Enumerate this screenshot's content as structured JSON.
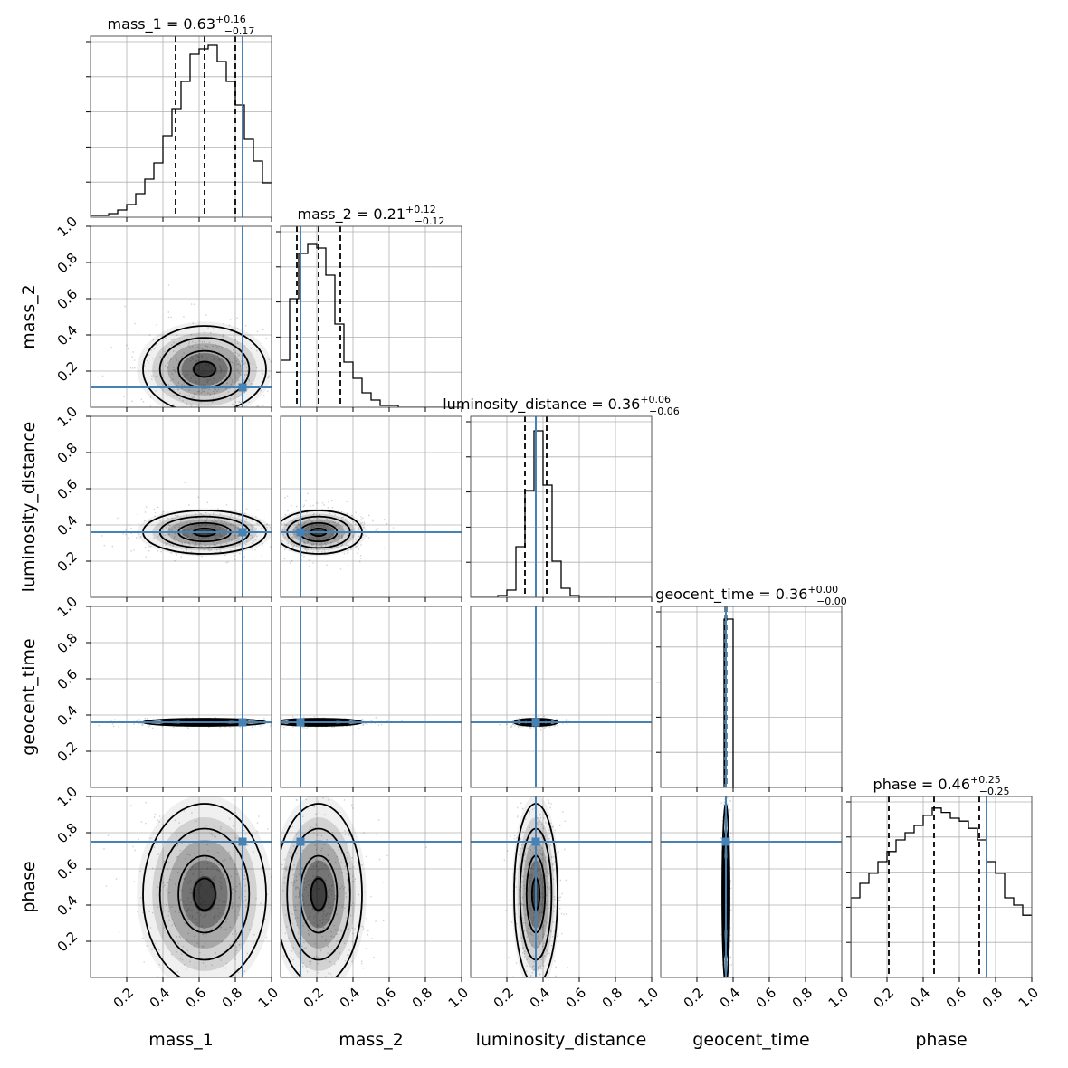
{
  "chart_data": {
    "type": "corner",
    "parameters": [
      "mass_1",
      "mass_2",
      "luminosity_distance",
      "geocent_time",
      "phase"
    ],
    "axis_range": [
      0,
      1
    ],
    "tick_labels": [
      "0.2",
      "0.4",
      "0.6",
      "0.8",
      "1.0"
    ],
    "ticks": [
      0.2,
      0.4,
      0.6,
      0.8,
      1.0
    ],
    "grid": true,
    "colors": {
      "truth": "#4682b4",
      "hist": "#000000",
      "quantile": "#000000"
    },
    "titles": [
      {
        "name": "mass_1",
        "median": "0.63",
        "plus": "+0.16",
        "minus": "−0.17"
      },
      {
        "name": "mass_2",
        "median": "0.21",
        "plus": "+0.12",
        "minus": "−0.12"
      },
      {
        "name": "luminosity_distance",
        "median": "0.36",
        "plus": "+0.06",
        "minus": "−0.06"
      },
      {
        "name": "geocent_time",
        "median": "0.36",
        "plus": "+0.00",
        "minus": "−0.00"
      },
      {
        "name": "phase",
        "median": "0.46",
        "plus": "+0.25",
        "minus": "−0.25"
      }
    ],
    "truths": [
      0.84,
      0.11,
      0.36,
      0.36,
      0.75
    ],
    "quantiles": [
      [
        0.47,
        0.63,
        0.8
      ],
      [
        0.09,
        0.21,
        0.33
      ],
      [
        0.3,
        0.36,
        0.42
      ],
      [
        0.357,
        0.36,
        0.363
      ],
      [
        0.21,
        0.46,
        0.71
      ]
    ],
    "histograms": [
      [
        0.01,
        0.01,
        0.02,
        0.04,
        0.07,
        0.13,
        0.21,
        0.3,
        0.45,
        0.6,
        0.75,
        0.9,
        0.93,
        0.95,
        0.86,
        0.75,
        0.62,
        0.43,
        0.31,
        0.19
      ],
      [
        0.26,
        0.6,
        0.85,
        0.9,
        0.88,
        0.73,
        0.46,
        0.25,
        0.16,
        0.08,
        0.04,
        0.01,
        0.01,
        0,
        0,
        0,
        0,
        0,
        0,
        0
      ],
      [
        0,
        0,
        0,
        0.01,
        0.04,
        0.28,
        0.59,
        0.92,
        0.62,
        0.2,
        0.05,
        0.01,
        0,
        0,
        0,
        0,
        0,
        0,
        0,
        0
      ],
      [
        0,
        0,
        0,
        0,
        0,
        0,
        0,
        0.93,
        0,
        0,
        0,
        0,
        0,
        0,
        0,
        0,
        0,
        0,
        0,
        0
      ],
      [
        0.55,
        0.65,
        0.72,
        0.8,
        0.87,
        0.95,
        1.0,
        1.05,
        1.12,
        1.17,
        1.14,
        1.1,
        1.08,
        1.03,
        0.95,
        0.8,
        0.72,
        0.55,
        0.5,
        0.43
      ]
    ],
    "hist_ymax": [
      1.0,
      1.0,
      1.0,
      1.0,
      1.25
    ],
    "posterior_mean": [
      0.63,
      0.21,
      0.36,
      0.36,
      0.46
    ],
    "posterior_std": [
      0.17,
      0.12,
      0.06,
      0.01,
      0.25
    ]
  }
}
